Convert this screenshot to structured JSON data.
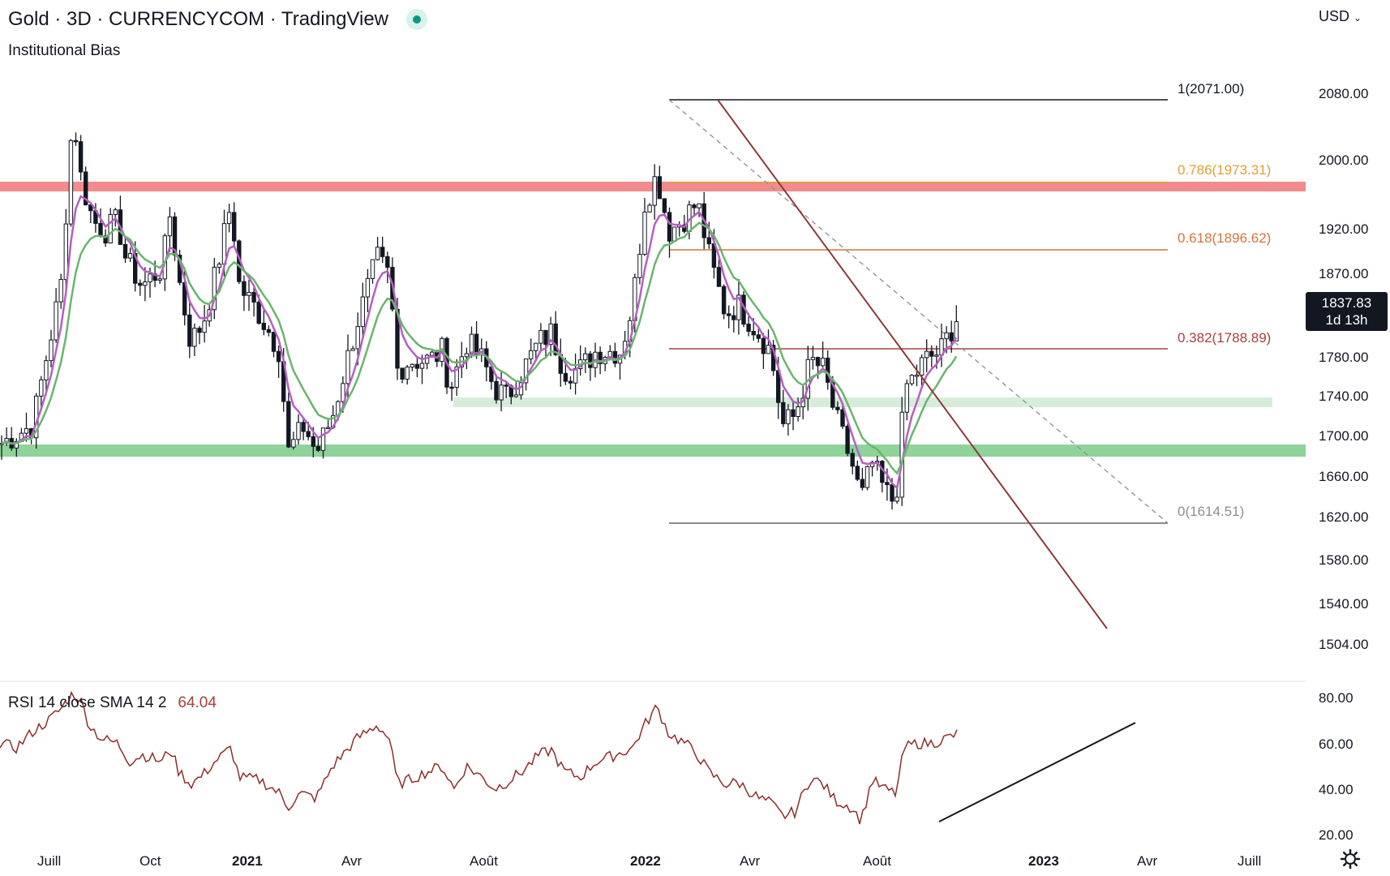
{
  "header": {
    "title": "Gold · 3D · CURRENCYCOM · TradingView",
    "indicator": "Institutional Bias",
    "currency": "USD",
    "currency_icon": "chevron-down-icon"
  },
  "price_scale": {
    "labels": [
      "2080.00",
      "2000.00",
      "1920.00",
      "1870.00",
      "1780.00",
      "1740.00",
      "1700.00",
      "1660.00",
      "1620.00",
      "1580.00",
      "1540.00",
      "1504.00"
    ],
    "current_price": "1837.83",
    "countdown": "1d 13h"
  },
  "fib_levels": [
    {
      "label": "1(2071.00)",
      "color": "#131722"
    },
    {
      "label": "0.786(1973.31)",
      "color": "#e0a030"
    },
    {
      "label": "0.618(1896.62)",
      "color": "#d4743a"
    },
    {
      "label": "0.382(1788.89)",
      "color": "#a8403e"
    },
    {
      "label": "0(1614.51)",
      "color": "#8a8e98"
    }
  ],
  "rsi": {
    "label": "RSI 14 close SMA 14 2",
    "value": "64.04",
    "scale": [
      "80.00",
      "60.00",
      "40.00",
      "20.00"
    ],
    "line_color": "#8b2f2b"
  },
  "time_axis": [
    {
      "label": "Juill",
      "bold": false
    },
    {
      "label": "Oct",
      "bold": false
    },
    {
      "label": "2021",
      "bold": true
    },
    {
      "label": "Avr",
      "bold": false
    },
    {
      "label": "Août",
      "bold": false
    },
    {
      "label": "2022",
      "bold": true
    },
    {
      "label": "Avr",
      "bold": false
    },
    {
      "label": "Août",
      "bold": false
    },
    {
      "label": "2023",
      "bold": true
    },
    {
      "label": "Avr",
      "bold": false
    },
    {
      "label": "Juill",
      "bold": false
    }
  ],
  "colors": {
    "resistance_zone": "#f28b8b",
    "support_zone": "#8fd39a",
    "support_zone_light": "#d6eed9",
    "ma_fast": "#b55fc2",
    "ma_slow": "#6ab56e",
    "trendline": "#8b3a3a"
  },
  "chart_data": {
    "type": "candlestick",
    "y_range": [
      1504,
      2080
    ],
    "anchors_price": [
      [
        0,
        1700
      ],
      [
        40,
        1720
      ],
      [
        75,
        1870
      ],
      [
        90,
        2060
      ],
      [
        100,
        1985
      ],
      [
        115,
        1940
      ],
      [
        130,
        1930
      ],
      [
        145,
        1940
      ],
      [
        155,
        1900
      ],
      [
        175,
        1870
      ],
      [
        200,
        1890
      ],
      [
        210,
        1950
      ],
      [
        220,
        1880
      ],
      [
        235,
        1810
      ],
      [
        250,
        1830
      ],
      [
        265,
        1880
      ],
      [
        285,
        1960
      ],
      [
        295,
        1870
      ],
      [
        320,
        1840
      ],
      [
        345,
        1800
      ],
      [
        355,
        1690
      ],
      [
        375,
        1720
      ],
      [
        390,
        1690
      ],
      [
        410,
        1730
      ],
      [
        440,
        1830
      ],
      [
        465,
        1900
      ],
      [
        480,
        1880
      ],
      [
        490,
        1780
      ],
      [
        505,
        1790
      ],
      [
        530,
        1790
      ],
      [
        545,
        1800
      ],
      [
        555,
        1760
      ],
      [
        575,
        1810
      ],
      [
        595,
        1790
      ],
      [
        610,
        1760
      ],
      [
        625,
        1750
      ],
      [
        645,
        1780
      ],
      [
        665,
        1810
      ],
      [
        680,
        1820
      ],
      [
        695,
        1780
      ],
      [
        715,
        1780
      ],
      [
        735,
        1800
      ],
      [
        765,
        1800
      ],
      [
        780,
        1850
      ],
      [
        795,
        1960
      ],
      [
        810,
        1990
      ],
      [
        825,
        1930
      ],
      [
        840,
        1940
      ],
      [
        860,
        1960
      ],
      [
        875,
        1900
      ],
      [
        895,
        1840
      ],
      [
        910,
        1850
      ],
      [
        935,
        1820
      ],
      [
        950,
        1800
      ],
      [
        965,
        1720
      ],
      [
        980,
        1730
      ],
      [
        1000,
        1790
      ],
      [
        1015,
        1780
      ],
      [
        1030,
        1730
      ],
      [
        1050,
        1680
      ],
      [
        1062,
        1640
      ],
      [
        1075,
        1680
      ],
      [
        1090,
        1650
      ],
      [
        1100,
        1640
      ],
      [
        1108,
        1660
      ],
      [
        1115,
        1760
      ],
      [
        1125,
        1770
      ],
      [
        1140,
        1790
      ],
      [
        1160,
        1800
      ],
      [
        1180,
        1837
      ]
    ],
    "anchors_rsi": [
      [
        0,
        60
      ],
      [
        20,
        58
      ],
      [
        40,
        65
      ],
      [
        60,
        70
      ],
      [
        75,
        75
      ],
      [
        90,
        82
      ],
      [
        100,
        78
      ],
      [
        110,
        68
      ],
      [
        125,
        62
      ],
      [
        145,
        60
      ],
      [
        160,
        52
      ],
      [
        175,
        55
      ],
      [
        200,
        52
      ],
      [
        210,
        58
      ],
      [
        220,
        48
      ],
      [
        235,
        42
      ],
      [
        250,
        46
      ],
      [
        265,
        52
      ],
      [
        285,
        58
      ],
      [
        295,
        45
      ],
      [
        320,
        44
      ],
      [
        345,
        38
      ],
      [
        355,
        32
      ],
      [
        370,
        38
      ],
      [
        390,
        36
      ],
      [
        410,
        50
      ],
      [
        440,
        62
      ],
      [
        465,
        68
      ],
      [
        480,
        62
      ],
      [
        490,
        42
      ],
      [
        505,
        44
      ],
      [
        530,
        48
      ],
      [
        545,
        50
      ],
      [
        560,
        40
      ],
      [
        575,
        50
      ],
      [
        595,
        45
      ],
      [
        610,
        40
      ],
      [
        625,
        43
      ],
      [
        645,
        48
      ],
      [
        665,
        55
      ],
      [
        680,
        57
      ],
      [
        695,
        48
      ],
      [
        715,
        45
      ],
      [
        735,
        52
      ],
      [
        760,
        55
      ],
      [
        780,
        58
      ],
      [
        795,
        68
      ],
      [
        810,
        76
      ],
      [
        825,
        64
      ],
      [
        845,
        60
      ],
      [
        860,
        55
      ],
      [
        875,
        47
      ],
      [
        895,
        42
      ],
      [
        910,
        43
      ],
      [
        935,
        36
      ],
      [
        950,
        34
      ],
      [
        965,
        28
      ],
      [
        980,
        30
      ],
      [
        1000,
        45
      ],
      [
        1015,
        42
      ],
      [
        1030,
        35
      ],
      [
        1050,
        32
      ],
      [
        1062,
        26
      ],
      [
        1075,
        44
      ],
      [
        1090,
        40
      ],
      [
        1105,
        38
      ],
      [
        1115,
        58
      ],
      [
        1130,
        60
      ],
      [
        1150,
        60
      ],
      [
        1165,
        62
      ],
      [
        1180,
        64
      ]
    ],
    "rsi_range": [
      20,
      80
    ],
    "fib": [
      {
        "level": 1,
        "price": 2071.0
      },
      {
        "level": 0.786,
        "price": 1973.31
      },
      {
        "level": 0.618,
        "price": 1896.62
      },
      {
        "level": 0.382,
        "price": 1788.89
      },
      {
        "level": 0,
        "price": 1614.51
      }
    ],
    "zones": [
      {
        "name": "resistance",
        "from": 1965,
        "to": 1978
      },
      {
        "name": "support",
        "from": 1680,
        "to": 1694
      },
      {
        "name": "support-light",
        "from": 1728,
        "to": 1738
      }
    ],
    "last_price": 1837.83
  }
}
